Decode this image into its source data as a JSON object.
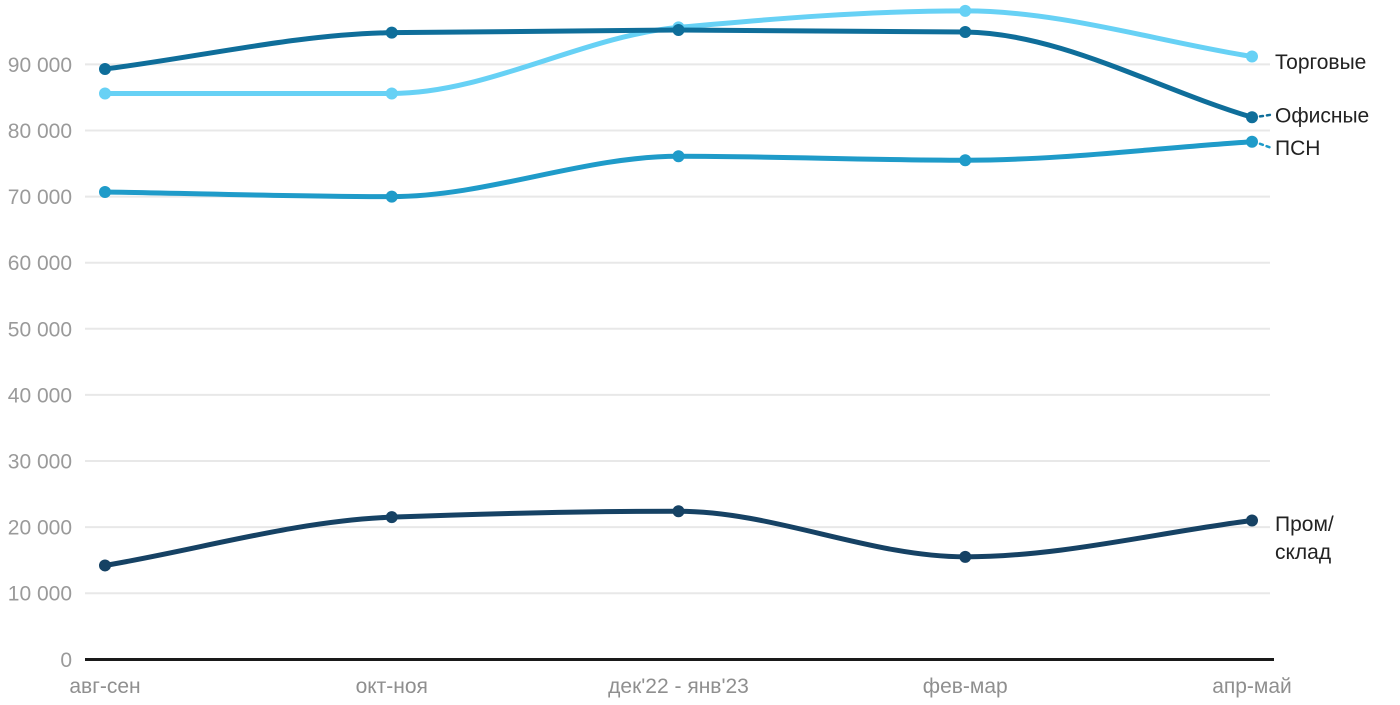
{
  "chart_data": {
    "type": "line",
    "title": "",
    "xlabel": "",
    "ylabel": "",
    "categories": [
      "авг-сен",
      "окт-ноя",
      "дек'22 - янв'23",
      "фев-мар",
      "апр-май"
    ],
    "series": [
      {
        "name": "Торговые",
        "label_lines": [
          "Торговые"
        ],
        "color": "#67d1f5",
        "leader": false,
        "values": [
          85600,
          85600,
          95600,
          98100,
          91200
        ]
      },
      {
        "name": "ПСН",
        "label_lines": [
          "ПСН"
        ],
        "color": "#1f9bc9",
        "leader": true,
        "values": [
          70700,
          70000,
          76100,
          75500,
          78300
        ]
      },
      {
        "name": "Офисные",
        "label_lines": [
          "Офисные"
        ],
        "color": "#0f6e9a",
        "leader": true,
        "values": [
          89300,
          94800,
          95200,
          94900,
          82000
        ]
      },
      {
        "name": "Пром/склад",
        "label_lines": [
          "Пром/",
          "склад"
        ],
        "color": "#164264",
        "leader": false,
        "values": [
          14200,
          21500,
          22400,
          15500,
          21000
        ]
      }
    ],
    "legend_position": "end-of-line",
    "grid": true,
    "ylim": [
      0,
      100000
    ],
    "ytick_values": [
      0,
      10000,
      20000,
      30000,
      40000,
      50000,
      60000,
      70000,
      80000,
      90000
    ],
    "ytick_labels": [
      "0",
      "10 000",
      "20 000",
      "30 000",
      "40 000",
      "50 000",
      "60 000",
      "70 000",
      "80 000",
      "90 000"
    ],
    "styles": {
      "grid_color": "#e8e8e8",
      "axis_color": "#1a1a1a",
      "ytick_label_color": "#9a9a9a",
      "xtick_label_color": "#8f8f8f",
      "series_label_color": "#222222",
      "background": "#ffffff"
    }
  }
}
